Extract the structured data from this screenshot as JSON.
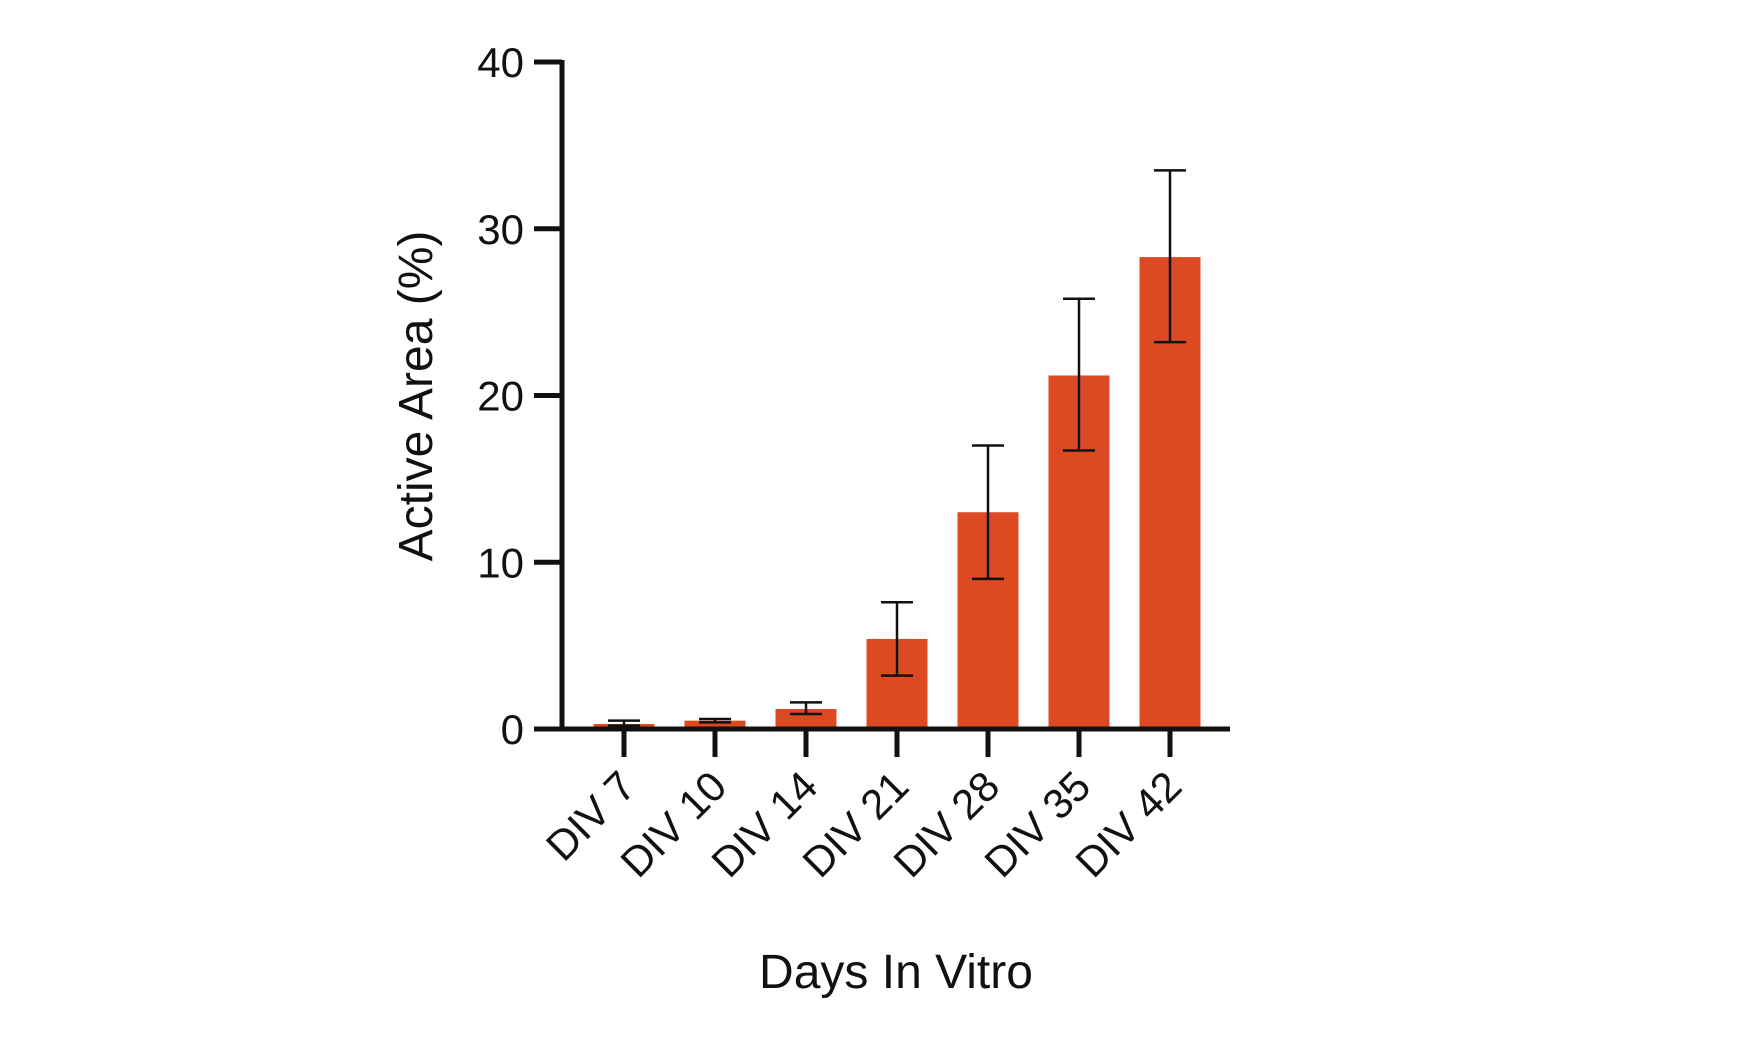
{
  "chart_data": {
    "type": "bar",
    "title": "",
    "xlabel": "Days In Vitro",
    "ylabel": "Active Area (%)",
    "categories": [
      "DIV 7",
      "DIV 10",
      "DIV 14",
      "DIV 21",
      "DIV 28",
      "DIV 35",
      "DIV 42"
    ],
    "values": [
      0.3,
      0.5,
      1.2,
      5.4,
      13.0,
      21.2,
      28.3
    ],
    "error_low": [
      0.2,
      0.4,
      0.9,
      3.2,
      9.0,
      16.7,
      23.2
    ],
    "error_high": [
      0.5,
      0.6,
      1.6,
      7.6,
      17.0,
      25.8,
      33.5
    ],
    "ylim": [
      0,
      40
    ],
    "yticks": [
      0,
      10,
      20,
      30,
      40
    ],
    "ytick_labels": [
      "0",
      "10",
      "20",
      "30",
      "40"
    ],
    "grid": false,
    "legend": "none",
    "bar_color": "#DC4A23",
    "axis_color": "#111111"
  }
}
